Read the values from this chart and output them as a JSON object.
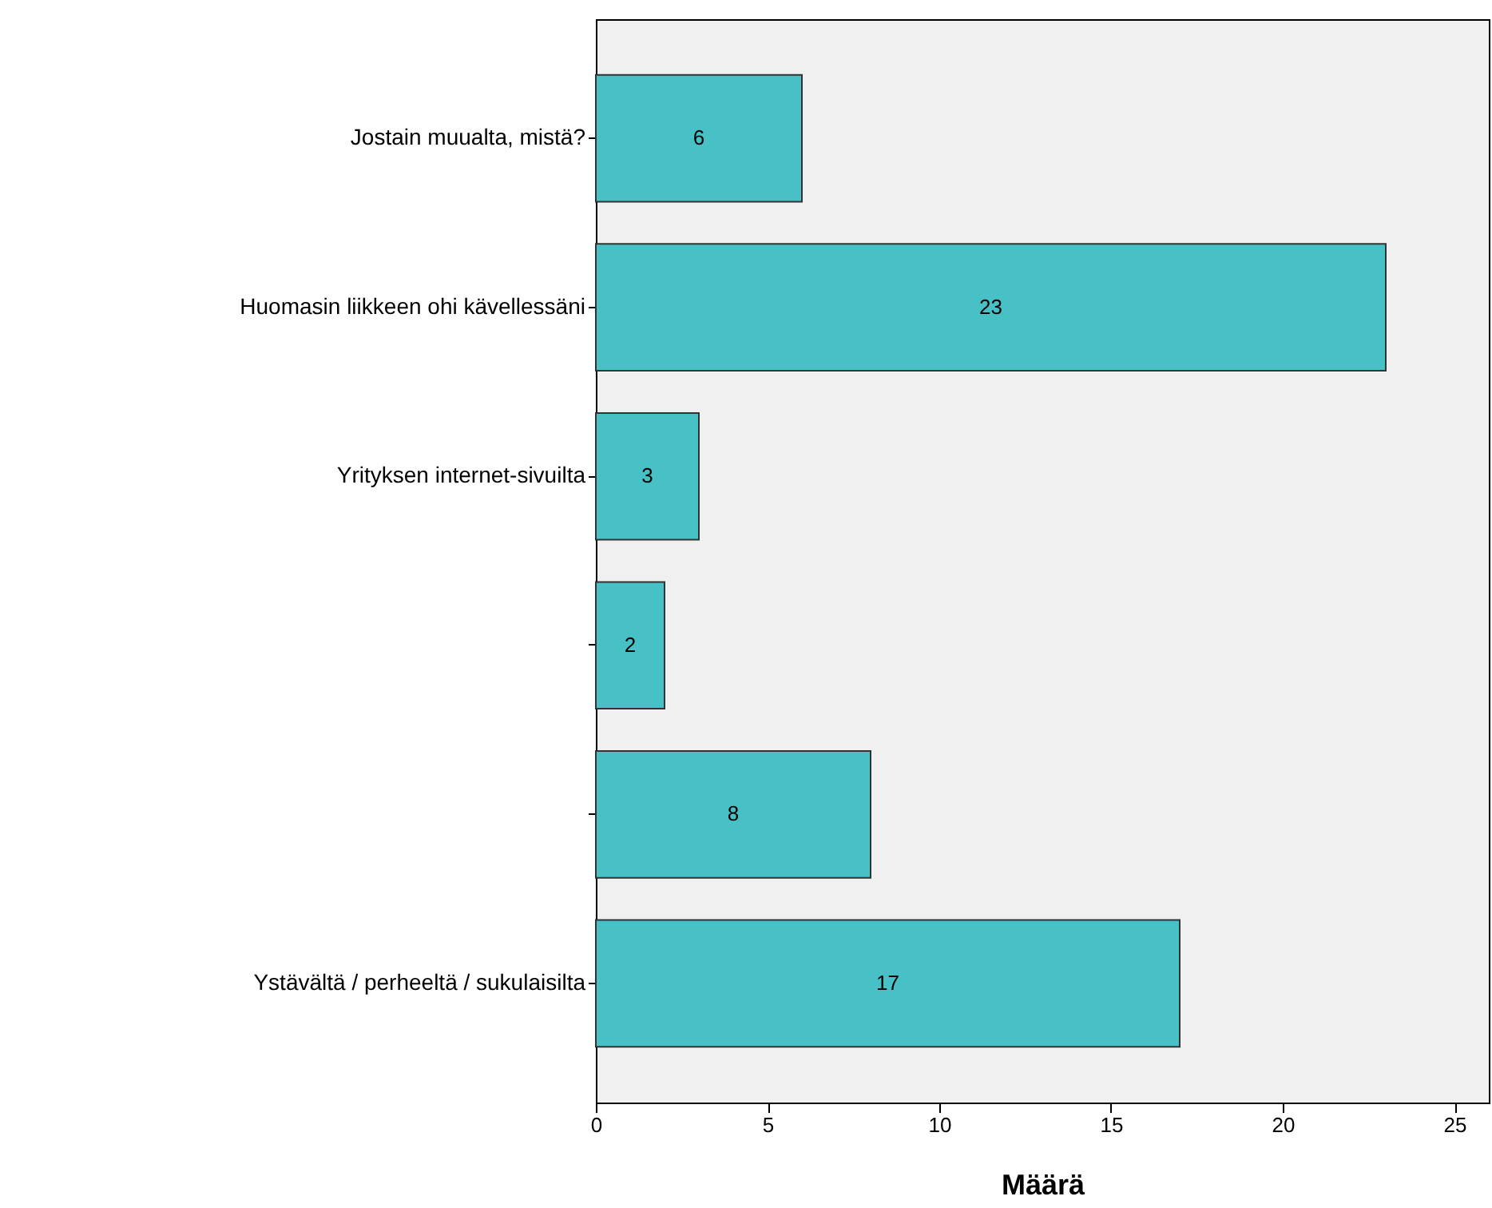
{
  "chart_data": {
    "type": "bar",
    "orientation": "horizontal",
    "xlabel": "Määrä",
    "categories": [
      "Jostain muualta, mistä?",
      "Huomasin liikkeen ohi kävellessäni",
      "Yrityksen internet-sivuilta",
      null,
      null,
      "Ystävältä / perheeltä / sukulaisilta"
    ],
    "values": [
      6,
      23,
      3,
      2,
      8,
      17
    ],
    "color": "#48c1c6",
    "xlim": [
      0,
      26
    ],
    "xticks": [
      0,
      5,
      10,
      15,
      20,
      25
    ],
    "grid": false,
    "data_labels": true
  }
}
